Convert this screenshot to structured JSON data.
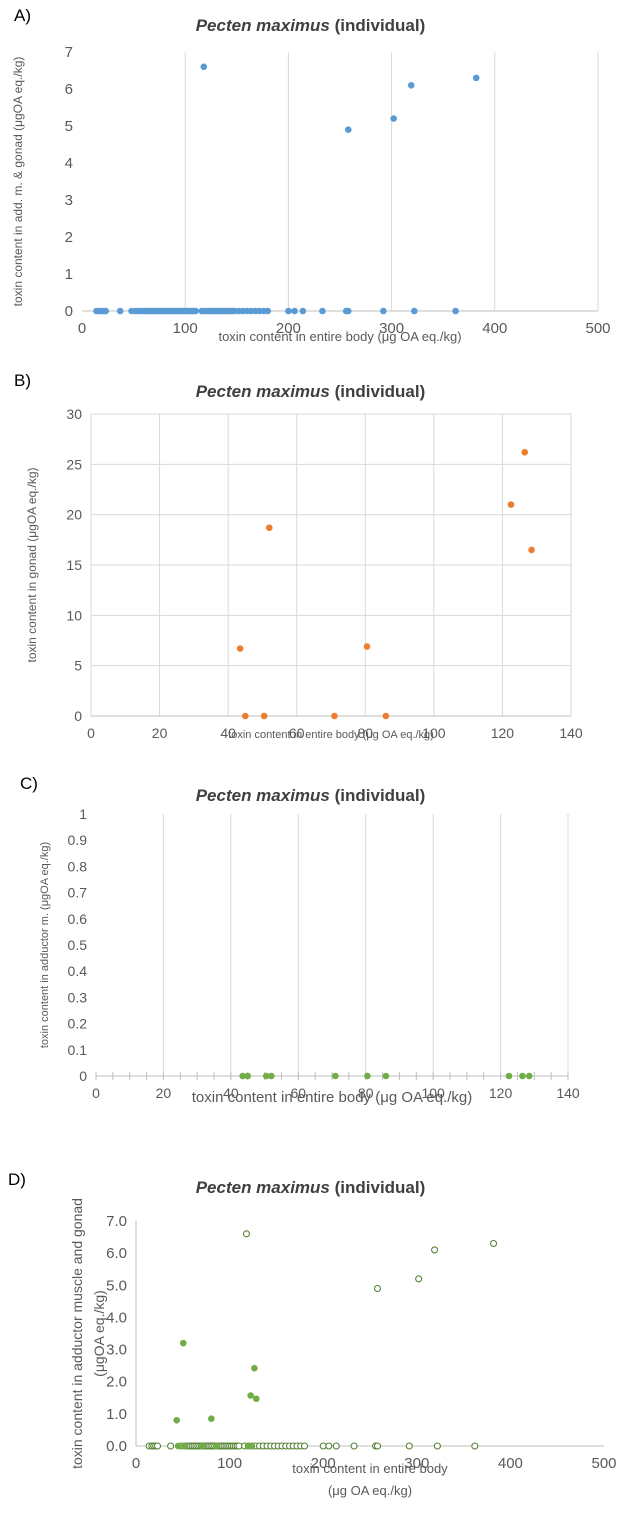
{
  "chart_data": [
    {
      "panel_label": "A)",
      "type": "scatter",
      "title_italic": "Pecten maximus",
      "title_rest": " (individual)",
      "xlabel": "toxin content in entire body (μg OA eq./kg)",
      "ylabel": "toxin content in  add. m. & gonad  (μgOA eq./kg)",
      "xlim": [
        0,
        500
      ],
      "ylim": [
        0,
        7
      ],
      "xticks": [
        "0",
        "100",
        "200",
        "300",
        "400",
        "500"
      ],
      "yticks": [
        "0",
        "1",
        "2",
        "3",
        "4",
        "5",
        "6",
        "7"
      ],
      "grid": "vertical",
      "series": [
        {
          "color": "#5b9bd5",
          "filled": true,
          "x": [
            14,
            17,
            19,
            21,
            23,
            37,
            48,
            52,
            55,
            58,
            60,
            62,
            64,
            66,
            68,
            70,
            72,
            74,
            76,
            78,
            80,
            82,
            84,
            86,
            88,
            90,
            92,
            94,
            96,
            98,
            100,
            102,
            104,
            106,
            108,
            110,
            116,
            118,
            120,
            122,
            124,
            126,
            128,
            130,
            132,
            134,
            136,
            138,
            140,
            142,
            144,
            146,
            148,
            152,
            156,
            160,
            164,
            168,
            172,
            176,
            180,
            200,
            206,
            214,
            233,
            256,
            258,
            292,
            322,
            362,
            118,
            258,
            302,
            319,
            382
          ],
          "y": [
            0,
            0,
            0,
            0,
            0,
            0,
            0,
            0,
            0,
            0,
            0,
            0,
            0,
            0,
            0,
            0,
            0,
            0,
            0,
            0,
            0,
            0,
            0,
            0,
            0,
            0,
            0,
            0,
            0,
            0,
            0,
            0,
            0,
            0,
            0,
            0,
            0,
            0,
            0,
            0,
            0,
            0,
            0,
            0,
            0,
            0,
            0,
            0,
            0,
            0,
            0,
            0,
            0,
            0,
            0,
            0,
            0,
            0,
            0,
            0,
            0,
            0,
            0,
            0,
            0,
            0,
            0,
            0,
            0,
            0,
            6.6,
            4.9,
            5.2,
            6.1,
            6.3
          ]
        }
      ]
    },
    {
      "panel_label": "B)",
      "type": "scatter",
      "title_italic": "Pecten maximus",
      "title_rest": " (individual)",
      "xlabel": "toxin content in entire body (μg OA eq./kg)",
      "ylabel": "toxin content in  gonad  (μgOA eq./kg)",
      "xlim": [
        0,
        140
      ],
      "ylim": [
        0,
        30
      ],
      "xticks": [
        "0",
        "20",
        "40",
        "60",
        "80",
        "100",
        "120",
        "140"
      ],
      "yticks": [
        "0",
        "5",
        "10",
        "15",
        "20",
        "25",
        "30"
      ],
      "grid": "both",
      "series": [
        {
          "color": "#ed7d31",
          "filled": true,
          "x": [
            43.5,
            45,
            50.5,
            52,
            71,
            80.5,
            86,
            122.5,
            126.5,
            128.5
          ],
          "y": [
            6.7,
            0,
            0,
            18.7,
            0,
            6.9,
            0,
            21,
            26.2,
            16.5
          ]
        }
      ]
    },
    {
      "panel_label": "C)",
      "type": "scatter",
      "title_italic": "Pecten maximus",
      "title_rest": " (individual)",
      "xlabel": "toxin content in entire body (μg OA eq./kg)",
      "ylabel": "toxin content in  adductor m. (μgOA eq./kg)",
      "xlim": [
        0,
        140
      ],
      "ylim": [
        0,
        1
      ],
      "xticks": [
        "0",
        "20",
        "40",
        "60",
        "80",
        "100",
        "120",
        "140"
      ],
      "yticks": [
        "0",
        "0.1",
        "0.2",
        "0.3",
        "0.4",
        "0.5",
        "0.6",
        "0.7",
        "0.8",
        "0.9",
        "1"
      ],
      "grid": "vertical",
      "series": [
        {
          "color": "#70ad47",
          "filled": true,
          "x": [
            43.5,
            45,
            50.5,
            52,
            71,
            80.5,
            86,
            122.5,
            126.5,
            128.5
          ],
          "y": [
            0,
            0,
            0,
            0,
            0,
            0,
            0,
            0,
            0,
            0
          ]
        }
      ]
    },
    {
      "panel_label": "D)",
      "type": "scatter",
      "title_italic": "Pecten maximus",
      "title_rest": " (individual)",
      "xlabel": "toxin content in entire body",
      "xlabel2": "(μg OA eq./kg)",
      "ylabel": "toxin content in  adductor muscle and gonad",
      "ylabel2": "(μgOA eq./kg)",
      "xlim": [
        0,
        500
      ],
      "ylim": [
        0,
        7
      ],
      "xticks": [
        "0",
        "100",
        "200",
        "300",
        "400",
        "500"
      ],
      "yticks": [
        "0.0",
        "1.0",
        "2.0",
        "3.0",
        "4.0",
        "5.0",
        "6.0",
        "7.0"
      ],
      "grid": "none",
      "series": [
        {
          "color": "#548235",
          "filled": false,
          "x": [
            14,
            17,
            19,
            21,
            23,
            37,
            48,
            52,
            55,
            58,
            60,
            62,
            64,
            66,
            68,
            70,
            72,
            74,
            76,
            78,
            80,
            82,
            84,
            86,
            88,
            90,
            92,
            94,
            96,
            98,
            100,
            102,
            104,
            106,
            108,
            110,
            116,
            120,
            124,
            128,
            132,
            136,
            140,
            144,
            148,
            152,
            156,
            160,
            164,
            168,
            172,
            176,
            180,
            200,
            206,
            214,
            233,
            256,
            258,
            292,
            322,
            362,
            118,
            258,
            302,
            319,
            382
          ],
          "y": [
            0,
            0,
            0,
            0,
            0,
            0,
            0,
            0,
            0,
            0,
            0,
            0,
            0,
            0,
            0,
            0,
            0,
            0,
            0,
            0,
            0,
            0,
            0,
            0,
            0,
            0,
            0,
            0,
            0,
            0,
            0,
            0,
            0,
            0,
            0,
            0,
            0,
            0,
            0,
            0,
            0,
            0,
            0,
            0,
            0,
            0,
            0,
            0,
            0,
            0,
            0,
            0,
            0,
            0,
            0,
            0,
            0,
            0,
            0,
            0,
            0,
            0,
            6.6,
            4.9,
            5.2,
            6.1,
            6.3
          ]
        },
        {
          "color": "#70ad47",
          "filled": true,
          "x": [
            43.5,
            50.5,
            80.5,
            122.5,
            126.5,
            128.5,
            45,
            52,
            71,
            86,
            120,
            124
          ],
          "y": [
            0.8,
            3.2,
            0.85,
            1.57,
            2.42,
            1.47,
            0,
            0,
            0,
            0,
            0,
            0
          ]
        }
      ]
    }
  ]
}
